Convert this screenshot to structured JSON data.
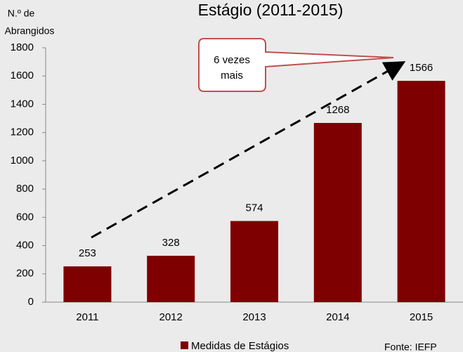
{
  "chart_data": {
    "type": "bar",
    "title": "Estágio (2011-2015)",
    "ylabel": [
      "N.º de",
      "Abrangidos"
    ],
    "categories": [
      "2011",
      "2012",
      "2013",
      "2014",
      "2015"
    ],
    "series": [
      {
        "name": "Medidas de Estágios",
        "color": "#7f0000",
        "values": [
          253,
          328,
          574,
          1268,
          1566
        ]
      }
    ],
    "ylim": [
      0,
      1800
    ],
    "yticks": [
      0,
      200,
      400,
      600,
      800,
      1000,
      1200,
      1400,
      1600,
      1800
    ],
    "grid": false,
    "legend": "bottom",
    "annotation": [
      "6 vezes",
      "mais"
    ],
    "source": "Fonte: IEFP"
  }
}
